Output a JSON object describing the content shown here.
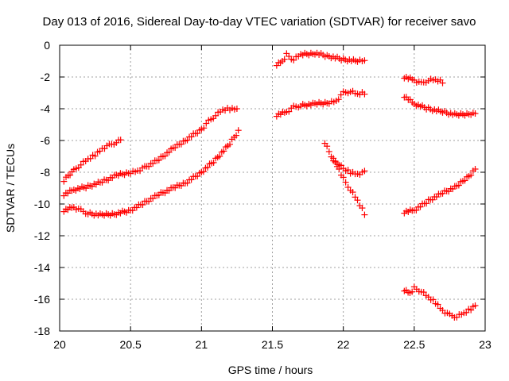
{
  "chart_data": {
    "type": "scatter",
    "title": "Day 013 of 2016, Sidereal Day-to-day VTEC variation (SDTVAR) for receiver savo",
    "xlabel": "GPS time / hours",
    "ylabel": "SDTVAR / TECUs",
    "xlim": [
      20,
      23
    ],
    "ylim": [
      -18,
      0
    ],
    "xticks": [
      20,
      20.5,
      21,
      21.5,
      22,
      22.5,
      23
    ],
    "xtick_labels": [
      "20",
      "20.5",
      "21",
      "21.5",
      "22",
      "22.5",
      "23"
    ],
    "yticks": [
      0,
      -2,
      -4,
      -6,
      -8,
      -10,
      -12,
      -14,
      -16,
      -18
    ],
    "ytick_labels": [
      "0",
      "-2",
      "-4",
      "-6",
      "-8",
      "-10",
      "-12",
      "-14",
      "-16",
      "-18"
    ],
    "grid": true,
    "marker": "+",
    "marker_color": "#ff0000",
    "series": [
      {
        "name": "s1",
        "points": [
          [
            20.03,
            -8.5
          ],
          [
            20.06,
            -8.2
          ],
          [
            20.1,
            -7.9
          ],
          [
            20.15,
            -7.5
          ],
          [
            20.2,
            -7.2
          ],
          [
            20.25,
            -6.9
          ],
          [
            20.3,
            -6.5
          ],
          [
            20.35,
            -6.3
          ],
          [
            20.4,
            -6.1
          ],
          [
            20.43,
            -6.0
          ]
        ]
      },
      {
        "name": "s2",
        "points": [
          [
            20.03,
            -9.4
          ],
          [
            20.1,
            -9.1
          ],
          [
            20.2,
            -8.9
          ],
          [
            20.3,
            -8.6
          ],
          [
            20.4,
            -8.2
          ],
          [
            20.5,
            -8.0
          ],
          [
            20.55,
            -7.9
          ],
          [
            20.6,
            -7.7
          ],
          [
            20.7,
            -7.2
          ],
          [
            20.8,
            -6.5
          ],
          [
            20.9,
            -5.9
          ],
          [
            21.0,
            -5.3
          ],
          [
            21.05,
            -4.8
          ],
          [
            21.1,
            -4.4
          ],
          [
            21.15,
            -4.1
          ],
          [
            21.2,
            -4.0
          ],
          [
            21.25,
            -4.0
          ]
        ]
      },
      {
        "name": "s3",
        "points": [
          [
            20.03,
            -10.4
          ],
          [
            20.1,
            -10.2
          ],
          [
            20.15,
            -10.4
          ],
          [
            20.2,
            -10.6
          ],
          [
            20.3,
            -10.7
          ],
          [
            20.4,
            -10.6
          ],
          [
            20.5,
            -10.4
          ],
          [
            20.6,
            -9.9
          ],
          [
            20.7,
            -9.4
          ],
          [
            20.8,
            -9.0
          ],
          [
            20.9,
            -8.6
          ],
          [
            21.0,
            -8.0
          ],
          [
            21.1,
            -7.2
          ],
          [
            21.2,
            -6.2
          ],
          [
            21.26,
            -5.4
          ]
        ]
      },
      {
        "name": "s4",
        "points": [
          [
            21.53,
            -1.2
          ],
          [
            21.57,
            -1.0
          ],
          [
            21.6,
            -0.6
          ],
          [
            21.65,
            -0.9
          ],
          [
            21.7,
            -0.6
          ],
          [
            21.8,
            -0.5
          ],
          [
            21.9,
            -0.7
          ],
          [
            22.0,
            -0.9
          ],
          [
            22.1,
            -1.0
          ],
          [
            22.15,
            -1.0
          ]
        ]
      },
      {
        "name": "s5",
        "points": [
          [
            21.53,
            -4.4
          ],
          [
            21.6,
            -4.2
          ],
          [
            21.65,
            -3.9
          ],
          [
            21.7,
            -3.8
          ],
          [
            21.8,
            -3.7
          ],
          [
            21.9,
            -3.6
          ],
          [
            21.95,
            -3.5
          ],
          [
            22.0,
            -3.0
          ],
          [
            22.05,
            -2.9
          ],
          [
            22.1,
            -3.1
          ],
          [
            22.15,
            -3.0
          ]
        ]
      },
      {
        "name": "s6",
        "points": [
          [
            21.87,
            -6.1
          ],
          [
            21.9,
            -6.7
          ],
          [
            21.93,
            -7.2
          ],
          [
            21.97,
            -7.5
          ],
          [
            22.0,
            -7.8
          ],
          [
            22.05,
            -8.0
          ],
          [
            22.1,
            -8.1
          ],
          [
            22.15,
            -8.0
          ]
        ]
      },
      {
        "name": "s7",
        "points": [
          [
            21.93,
            -7.2
          ],
          [
            21.97,
            -7.8
          ],
          [
            22.0,
            -8.4
          ],
          [
            22.05,
            -9.1
          ],
          [
            22.1,
            -9.8
          ],
          [
            22.15,
            -10.6
          ]
        ]
      },
      {
        "name": "s8",
        "points": [
          [
            22.43,
            -2.0
          ],
          [
            22.5,
            -2.2
          ],
          [
            22.55,
            -2.4
          ],
          [
            22.6,
            -2.2
          ],
          [
            22.65,
            -2.2
          ],
          [
            22.7,
            -2.3
          ]
        ]
      },
      {
        "name": "s9",
        "points": [
          [
            22.43,
            -3.2
          ],
          [
            22.5,
            -3.7
          ],
          [
            22.6,
            -4.0
          ],
          [
            22.7,
            -4.2
          ],
          [
            22.8,
            -4.4
          ],
          [
            22.9,
            -4.3
          ],
          [
            22.93,
            -4.3
          ]
        ]
      },
      {
        "name": "s10",
        "points": [
          [
            22.43,
            -10.5
          ],
          [
            22.5,
            -10.4
          ],
          [
            22.6,
            -9.8
          ],
          [
            22.7,
            -9.3
          ],
          [
            22.8,
            -8.9
          ],
          [
            22.9,
            -8.1
          ],
          [
            22.93,
            -7.8
          ]
        ]
      },
      {
        "name": "s11",
        "points": [
          [
            22.43,
            -15.4
          ],
          [
            22.47,
            -15.6
          ],
          [
            22.5,
            -15.3
          ],
          [
            22.55,
            -15.5
          ],
          [
            22.6,
            -15.9
          ],
          [
            22.65,
            -16.2
          ],
          [
            22.7,
            -16.7
          ],
          [
            22.75,
            -17.0
          ],
          [
            22.8,
            -17.1
          ],
          [
            22.85,
            -16.9
          ],
          [
            22.9,
            -16.6
          ],
          [
            22.93,
            -16.4
          ]
        ]
      }
    ]
  }
}
